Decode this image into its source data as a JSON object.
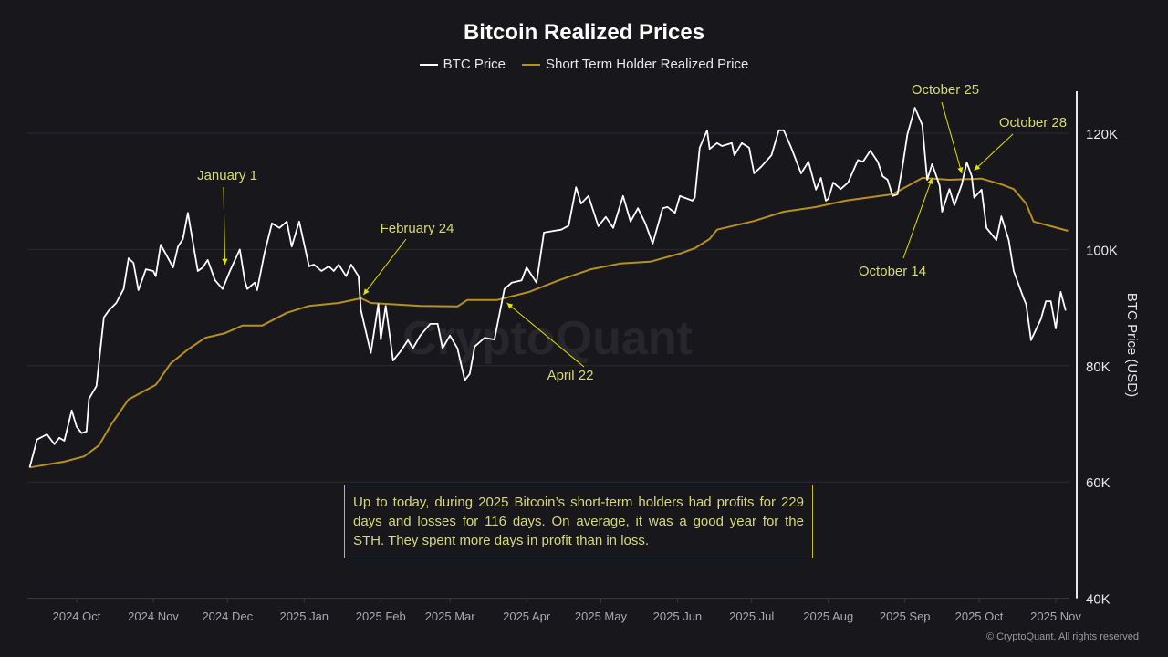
{
  "chart_data": {
    "type": "line",
    "title": "Bitcoin Realized Prices",
    "ylabel": "BTC Price (USD)",
    "y_axis_position": "right",
    "ylim": [
      40000,
      126000
    ],
    "y_ticks": [
      {
        "value": 40000,
        "label": "40K"
      },
      {
        "value": 60000,
        "label": "60K"
      },
      {
        "value": 80000,
        "label": "80K"
      },
      {
        "value": 100000,
        "label": "100K"
      },
      {
        "value": 120000,
        "label": "120K"
      }
    ],
    "x_ticks": [
      {
        "date": "2024-10-01",
        "label": "2024 Oct"
      },
      {
        "date": "2024-11-01",
        "label": "2024 Nov"
      },
      {
        "date": "2024-12-01",
        "label": "2024 Dec"
      },
      {
        "date": "2025-01-01",
        "label": "2025 Jan"
      },
      {
        "date": "2025-02-01",
        "label": "2025 Feb"
      },
      {
        "date": "2025-03-01",
        "label": "2025 Mar"
      },
      {
        "date": "2025-04-01",
        "label": "2025 Apr"
      },
      {
        "date": "2025-05-01",
        "label": "2025 May"
      },
      {
        "date": "2025-06-01",
        "label": "2025 Jun"
      },
      {
        "date": "2025-07-01",
        "label": "2025 Jul"
      },
      {
        "date": "2025-08-01",
        "label": "2025 Aug"
      },
      {
        "date": "2025-09-01",
        "label": "2025 Sep"
      },
      {
        "date": "2025-10-01",
        "label": "2025 Oct"
      },
      {
        "date": "2025-11-01",
        "label": "2025 Nov"
      }
    ],
    "grid": true,
    "legend_placement": "top-center",
    "series": [
      {
        "name": "BTC Price",
        "color": "#ffffff",
        "points": [
          [
            "2024-09-12",
            62500
          ],
          [
            "2024-09-15",
            67300
          ],
          [
            "2024-09-19",
            68200
          ],
          [
            "2024-09-22",
            66500
          ],
          [
            "2024-09-24",
            67600
          ],
          [
            "2024-09-26",
            67100
          ],
          [
            "2024-09-29",
            72300
          ],
          [
            "2024-10-01",
            69500
          ],
          [
            "2024-10-03",
            68400
          ],
          [
            "2024-10-05",
            68700
          ],
          [
            "2024-10-06",
            74300
          ],
          [
            "2024-10-09",
            76500
          ],
          [
            "2024-10-12",
            88300
          ],
          [
            "2024-10-14",
            89500
          ],
          [
            "2024-10-17",
            90800
          ],
          [
            "2024-10-20",
            93200
          ],
          [
            "2024-10-22",
            98500
          ],
          [
            "2024-10-24",
            97700
          ],
          [
            "2024-10-26",
            93000
          ],
          [
            "2024-10-29",
            96600
          ],
          [
            "2024-11-01",
            96300
          ],
          [
            "2024-11-02",
            95400
          ],
          [
            "2024-11-04",
            100800
          ],
          [
            "2024-11-06",
            99300
          ],
          [
            "2024-11-09",
            96900
          ],
          [
            "2024-11-11",
            100500
          ],
          [
            "2024-11-13",
            101800
          ],
          [
            "2024-11-15",
            106300
          ],
          [
            "2024-11-19",
            96300
          ],
          [
            "2024-11-21",
            96900
          ],
          [
            "2024-11-23",
            98200
          ],
          [
            "2024-11-26",
            94700
          ],
          [
            "2024-11-29",
            93200
          ],
          [
            "2024-12-02",
            96300
          ],
          [
            "2024-12-06",
            100000
          ],
          [
            "2024-12-08",
            94600
          ],
          [
            "2024-12-09",
            93200
          ],
          [
            "2024-12-12",
            94300
          ],
          [
            "2024-12-13",
            93000
          ],
          [
            "2024-12-16",
            99400
          ],
          [
            "2024-12-19",
            104500
          ],
          [
            "2024-12-22",
            103700
          ],
          [
            "2024-12-25",
            104800
          ],
          [
            "2024-12-27",
            100500
          ],
          [
            "2024-12-30",
            104800
          ],
          [
            "2025-01-03",
            97100
          ],
          [
            "2025-01-05",
            97400
          ],
          [
            "2025-01-08",
            96300
          ],
          [
            "2025-01-11",
            97100
          ],
          [
            "2025-01-13",
            96300
          ],
          [
            "2025-01-15",
            97400
          ],
          [
            "2025-01-18",
            95400
          ],
          [
            "2025-01-20",
            97400
          ],
          [
            "2025-01-23",
            95400
          ],
          [
            "2025-01-24",
            89500
          ],
          [
            "2025-01-28",
            82200
          ],
          [
            "2025-01-31",
            90600
          ],
          [
            "2025-02-01",
            84500
          ],
          [
            "2025-02-03",
            90300
          ],
          [
            "2025-02-06",
            80900
          ],
          [
            "2025-02-09",
            82500
          ],
          [
            "2025-02-12",
            84400
          ],
          [
            "2025-02-14",
            83000
          ],
          [
            "2025-02-17",
            85200
          ],
          [
            "2025-02-21",
            87200
          ],
          [
            "2025-02-24",
            87200
          ],
          [
            "2025-02-26",
            83000
          ],
          [
            "2025-03-01",
            85200
          ],
          [
            "2025-03-04",
            83000
          ],
          [
            "2025-03-07",
            77500
          ],
          [
            "2025-03-09",
            78600
          ],
          [
            "2025-03-11",
            83300
          ],
          [
            "2025-03-15",
            84800
          ],
          [
            "2025-03-19",
            84500
          ],
          [
            "2025-03-23",
            93200
          ],
          [
            "2025-03-26",
            94300
          ],
          [
            "2025-03-30",
            94700
          ],
          [
            "2025-04-01",
            96900
          ],
          [
            "2025-04-05",
            94300
          ],
          [
            "2025-04-08",
            102900
          ],
          [
            "2025-04-12",
            103200
          ],
          [
            "2025-04-15",
            103400
          ],
          [
            "2025-04-18",
            104100
          ],
          [
            "2025-04-21",
            110700
          ],
          [
            "2025-04-23",
            107900
          ],
          [
            "2025-04-26",
            109200
          ],
          [
            "2025-04-30",
            104000
          ],
          [
            "2025-05-03",
            105600
          ],
          [
            "2025-05-06",
            103700
          ],
          [
            "2025-05-10",
            109200
          ],
          [
            "2025-05-13",
            104800
          ],
          [
            "2025-05-16",
            107100
          ],
          [
            "2025-05-19",
            104500
          ],
          [
            "2025-05-22",
            101000
          ],
          [
            "2025-05-26",
            107100
          ],
          [
            "2025-05-28",
            107300
          ],
          [
            "2025-05-31",
            106300
          ],
          [
            "2025-06-02",
            109200
          ],
          [
            "2025-06-07",
            108400
          ],
          [
            "2025-06-08",
            108900
          ],
          [
            "2025-06-10",
            117500
          ],
          [
            "2025-06-13",
            120500
          ],
          [
            "2025-06-14",
            117300
          ],
          [
            "2025-06-17",
            118300
          ],
          [
            "2025-06-19",
            117800
          ],
          [
            "2025-06-23",
            118300
          ],
          [
            "2025-06-24",
            116200
          ],
          [
            "2025-06-27",
            118300
          ],
          [
            "2025-06-30",
            117500
          ],
          [
            "2025-07-02",
            113100
          ],
          [
            "2025-07-05",
            114300
          ],
          [
            "2025-07-09",
            116200
          ],
          [
            "2025-07-12",
            120500
          ],
          [
            "2025-07-14",
            120500
          ],
          [
            "2025-07-17",
            117500
          ],
          [
            "2025-07-21",
            113100
          ],
          [
            "2025-07-24",
            115100
          ],
          [
            "2025-07-27",
            110300
          ],
          [
            "2025-07-29",
            112300
          ],
          [
            "2025-07-31",
            108400
          ],
          [
            "2025-08-01",
            108700
          ],
          [
            "2025-08-03",
            111500
          ],
          [
            "2025-08-06",
            110400
          ],
          [
            "2025-08-09",
            111500
          ],
          [
            "2025-08-13",
            115400
          ],
          [
            "2025-08-15",
            115100
          ],
          [
            "2025-08-18",
            117000
          ],
          [
            "2025-08-21",
            115100
          ],
          [
            "2025-08-23",
            112600
          ],
          [
            "2025-08-25",
            112000
          ],
          [
            "2025-08-27",
            109200
          ],
          [
            "2025-08-29",
            109500
          ],
          [
            "2025-08-31",
            114200
          ],
          [
            "2025-09-02",
            119800
          ],
          [
            "2025-09-05",
            124400
          ],
          [
            "2025-09-08",
            121400
          ],
          [
            "2025-09-10",
            112000
          ],
          [
            "2025-09-12",
            114700
          ],
          [
            "2025-09-15",
            111000
          ],
          [
            "2025-09-16",
            106500
          ],
          [
            "2025-09-19",
            110400
          ],
          [
            "2025-09-21",
            107600
          ],
          [
            "2025-09-24",
            111200
          ],
          [
            "2025-09-26",
            115000
          ],
          [
            "2025-09-28",
            112600
          ],
          [
            "2025-09-29",
            108900
          ],
          [
            "2025-10-02",
            110300
          ],
          [
            "2025-10-04",
            103700
          ],
          [
            "2025-10-08",
            101600
          ],
          [
            "2025-10-10",
            105700
          ],
          [
            "2025-10-13",
            101600
          ],
          [
            "2025-10-15",
            96300
          ],
          [
            "2025-10-19",
            91600
          ],
          [
            "2025-10-20",
            90600
          ],
          [
            "2025-10-22",
            84400
          ],
          [
            "2025-10-23",
            85300
          ],
          [
            "2025-10-26",
            88000
          ],
          [
            "2025-10-28",
            91100
          ],
          [
            "2025-10-30",
            91100
          ],
          [
            "2025-11-01",
            86400
          ],
          [
            "2025-11-03",
            92700
          ],
          [
            "2025-11-05",
            89500
          ]
        ]
      },
      {
        "name": "Short Term Holder Realized Price",
        "color": "#b8901c",
        "points": [
          [
            "2024-09-12",
            62500
          ],
          [
            "2024-09-26",
            63500
          ],
          [
            "2024-10-04",
            64400
          ],
          [
            "2024-10-10",
            66300
          ],
          [
            "2024-10-15",
            69900
          ],
          [
            "2024-10-22",
            74200
          ],
          [
            "2024-11-02",
            76700
          ],
          [
            "2024-11-08",
            80400
          ],
          [
            "2024-11-15",
            82800
          ],
          [
            "2024-11-22",
            84800
          ],
          [
            "2024-11-30",
            85600
          ],
          [
            "2024-12-07",
            86900
          ],
          [
            "2024-12-15",
            86900
          ],
          [
            "2024-12-25",
            89100
          ],
          [
            "2025-01-03",
            90300
          ],
          [
            "2025-01-15",
            90800
          ],
          [
            "2025-01-24",
            91600
          ],
          [
            "2025-01-28",
            90800
          ],
          [
            "2025-02-17",
            90300
          ],
          [
            "2025-03-04",
            90200
          ],
          [
            "2025-03-08",
            91300
          ],
          [
            "2025-03-20",
            91300
          ],
          [
            "2025-04-02",
            92700
          ],
          [
            "2025-04-14",
            94700
          ],
          [
            "2025-04-27",
            96600
          ],
          [
            "2025-05-09",
            97600
          ],
          [
            "2025-05-21",
            97900
          ],
          [
            "2025-06-02",
            99300
          ],
          [
            "2025-06-08",
            100200
          ],
          [
            "2025-06-14",
            101800
          ],
          [
            "2025-06-17",
            103400
          ],
          [
            "2025-07-02",
            104900
          ],
          [
            "2025-07-14",
            106500
          ],
          [
            "2025-07-27",
            107300
          ],
          [
            "2025-08-08",
            108400
          ],
          [
            "2025-08-27",
            109500
          ],
          [
            "2025-09-08",
            112300
          ],
          [
            "2025-09-19",
            112000
          ],
          [
            "2025-10-02",
            112200
          ],
          [
            "2025-10-10",
            111200
          ],
          [
            "2025-10-15",
            110400
          ],
          [
            "2025-10-20",
            107900
          ],
          [
            "2025-10-23",
            104800
          ],
          [
            "2025-10-30",
            104000
          ],
          [
            "2025-11-06",
            103200
          ]
        ]
      }
    ],
    "annotations": [
      {
        "text": "January 1",
        "target": {
          "date": "2024-11-30",
          "value": 97400
        }
      },
      {
        "text": "February 24",
        "target": {
          "date": "2025-01-25",
          "value": 92200
        }
      },
      {
        "text": "April 22",
        "target": {
          "date": "2025-03-24",
          "value": 90800
        }
      },
      {
        "text": "October 14",
        "target": {
          "date": "2025-09-12",
          "value": 112300
        }
      },
      {
        "text": "October 25",
        "target": {
          "date": "2025-09-24",
          "value": 113100
        }
      },
      {
        "text": "October 28",
        "target": {
          "date": "2025-09-29",
          "value": 113600
        }
      }
    ],
    "annotation_color": "#e5e000",
    "annotation_text_color": "#d7d87a"
  },
  "note": "Up to today, during 2025 Bitcoin’s short-term holders had profits for 229 days and losses for 116 days. On average, it was a good year for the STH. They spent more days in profit than in loss.",
  "watermark": "CryptoQuant",
  "copyright": "© CryptoQuant. All rights reserved"
}
